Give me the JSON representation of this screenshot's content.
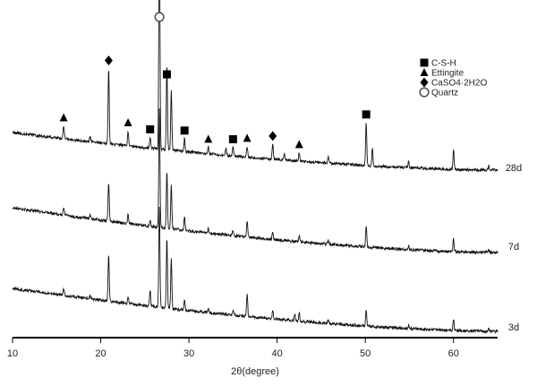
{
  "chart_data": {
    "type": "line",
    "xlabel": "2θ(degree)",
    "xlim": [
      10,
      65
    ],
    "xticks": [
      10,
      20,
      30,
      40,
      50,
      60
    ],
    "grid": false,
    "legend_position": "top-right",
    "legend": [
      {
        "marker": "square",
        "label": "C-S-H"
      },
      {
        "marker": "triangle",
        "label": "Ettingite"
      },
      {
        "marker": "diamond",
        "label": "CaSO4·2H2O"
      },
      {
        "marker": "circle",
        "label": "Quartz"
      }
    ],
    "series": [
      {
        "name": "28d",
        "peaks": [
          {
            "x": 15.8,
            "h": 0.12
          },
          {
            "x": 18.8,
            "h": 0.05
          },
          {
            "x": 20.9,
            "h": 0.7
          },
          {
            "x": 23.1,
            "h": 0.14
          },
          {
            "x": 25.6,
            "h": 0.1
          },
          {
            "x": 26.65,
            "h": 2.2
          },
          {
            "x": 27.5,
            "h": 0.8
          },
          {
            "x": 28.0,
            "h": 0.55
          },
          {
            "x": 29.5,
            "h": 0.12
          },
          {
            "x": 32.2,
            "h": 0.06
          },
          {
            "x": 34.2,
            "h": 0.06
          },
          {
            "x": 35.0,
            "h": 0.08
          },
          {
            "x": 36.6,
            "h": 0.1
          },
          {
            "x": 39.5,
            "h": 0.14
          },
          {
            "x": 40.8,
            "h": 0.06
          },
          {
            "x": 42.5,
            "h": 0.08
          },
          {
            "x": 45.8,
            "h": 0.06
          },
          {
            "x": 50.1,
            "h": 0.4
          },
          {
            "x": 50.8,
            "h": 0.16
          },
          {
            "x": 54.9,
            "h": 0.06
          },
          {
            "x": 60.0,
            "h": 0.18
          },
          {
            "x": 64.0,
            "h": 0.04
          }
        ],
        "annotations": [
          {
            "x": 15.8,
            "marker": "triangle"
          },
          {
            "x": 20.9,
            "marker": "diamond"
          },
          {
            "x": 23.1,
            "marker": "triangle"
          },
          {
            "x": 25.6,
            "marker": "square"
          },
          {
            "x": 26.65,
            "marker": "circle"
          },
          {
            "x": 27.5,
            "marker": "square"
          },
          {
            "x": 29.5,
            "marker": "square"
          },
          {
            "x": 32.2,
            "marker": "triangle"
          },
          {
            "x": 35.0,
            "marker": "square"
          },
          {
            "x": 36.6,
            "marker": "triangle"
          },
          {
            "x": 39.5,
            "marker": "diamond"
          },
          {
            "x": 42.5,
            "marker": "triangle"
          },
          {
            "x": 50.1,
            "marker": "square"
          }
        ]
      },
      {
        "name": "7d",
        "peaks": [
          {
            "x": 15.8,
            "h": 0.12
          },
          {
            "x": 18.8,
            "h": 0.05
          },
          {
            "x": 20.9,
            "h": 0.55
          },
          {
            "x": 23.1,
            "h": 0.12
          },
          {
            "x": 25.6,
            "h": 0.1
          },
          {
            "x": 26.65,
            "h": 1.7
          },
          {
            "x": 27.5,
            "h": 0.8
          },
          {
            "x": 28.0,
            "h": 0.6
          },
          {
            "x": 29.5,
            "h": 0.18
          },
          {
            "x": 32.2,
            "h": 0.06
          },
          {
            "x": 35.0,
            "h": 0.08
          },
          {
            "x": 36.6,
            "h": 0.22
          },
          {
            "x": 39.5,
            "h": 0.12
          },
          {
            "x": 42.5,
            "h": 0.08
          },
          {
            "x": 45.8,
            "h": 0.06
          },
          {
            "x": 50.1,
            "h": 0.3
          },
          {
            "x": 54.9,
            "h": 0.05
          },
          {
            "x": 60.0,
            "h": 0.18
          },
          {
            "x": 64.0,
            "h": 0.04
          }
        ],
        "annotations": []
      },
      {
        "name": "3d",
        "peaks": [
          {
            "x": 15.8,
            "h": 0.1
          },
          {
            "x": 18.8,
            "h": 0.04
          },
          {
            "x": 20.9,
            "h": 0.65
          },
          {
            "x": 23.1,
            "h": 0.1
          },
          {
            "x": 25.6,
            "h": 0.22
          },
          {
            "x": 26.65,
            "h": 1.4
          },
          {
            "x": 27.5,
            "h": 1.0
          },
          {
            "x": 28.0,
            "h": 0.7
          },
          {
            "x": 29.5,
            "h": 0.14
          },
          {
            "x": 32.2,
            "h": 0.06
          },
          {
            "x": 35.0,
            "h": 0.08
          },
          {
            "x": 36.6,
            "h": 0.32
          },
          {
            "x": 39.5,
            "h": 0.12
          },
          {
            "x": 42.0,
            "h": 0.1
          },
          {
            "x": 42.5,
            "h": 0.12
          },
          {
            "x": 45.8,
            "h": 0.06
          },
          {
            "x": 50.1,
            "h": 0.22
          },
          {
            "x": 54.9,
            "h": 0.05
          },
          {
            "x": 60.0,
            "h": 0.16
          },
          {
            "x": 64.0,
            "h": 0.04
          }
        ],
        "annotations": []
      }
    ]
  }
}
